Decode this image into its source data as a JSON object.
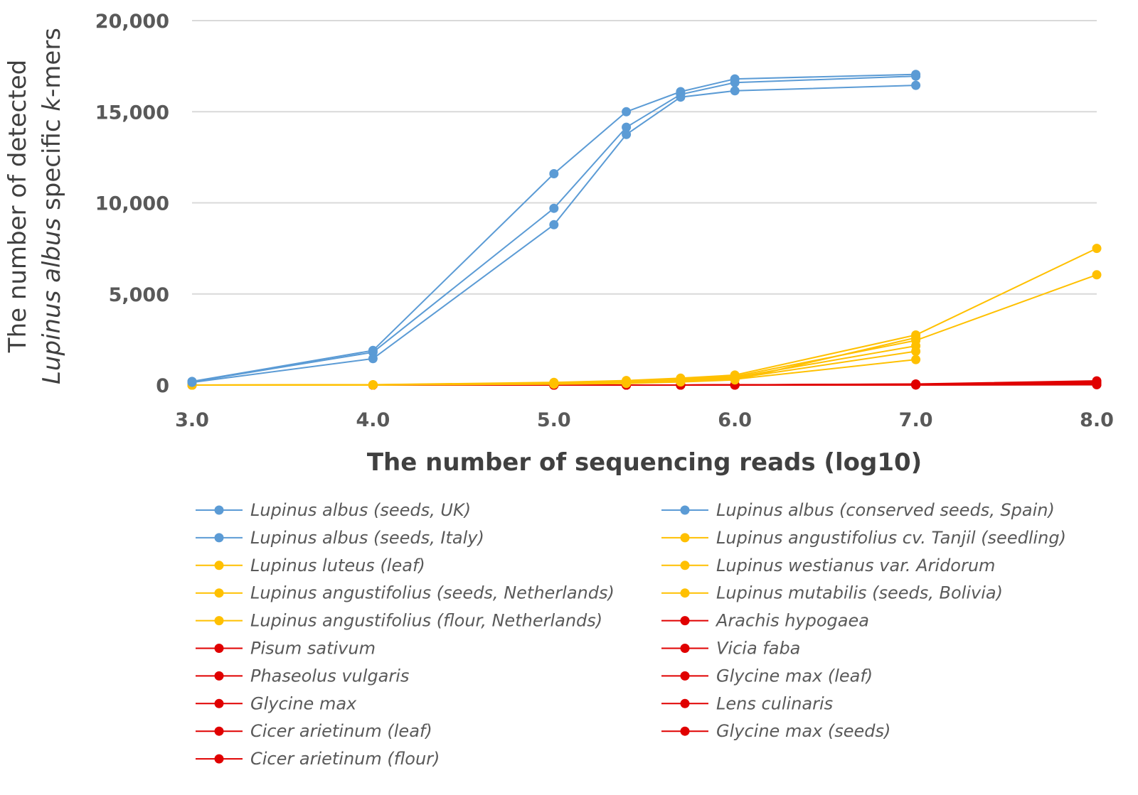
{
  "chart_data": {
    "type": "line",
    "xlabel": "The number of sequencing reads (log10)",
    "ylabel_parts": [
      {
        "text": "Lupinus albus",
        "italic": true
      },
      {
        "text": " specific ",
        "italic": false
      },
      {
        "text": "k",
        "italic": true
      },
      {
        "text": "-mers",
        "italic": false
      }
    ],
    "ylabel_line1": "The number of detected",
    "xlim": [
      3.0,
      8.0
    ],
    "ylim": [
      0,
      20000
    ],
    "x_ticks": [
      3.0,
      4.0,
      5.0,
      6.0,
      7.0,
      8.0
    ],
    "x_tick_labels": [
      "3.0",
      "4.0",
      "5.0",
      "6.0",
      "7.0",
      "8.0"
    ],
    "y_ticks": [
      0,
      5000,
      10000,
      15000,
      20000
    ],
    "y_tick_labels": [
      "0",
      "5,000",
      "10,000",
      "15,000",
      "20,000"
    ],
    "grid": true,
    "legend_position": "bottom",
    "series": [
      {
        "name": "Lupinus albus (seeds, UK)",
        "color": "#5b9bd5",
        "x": [
          3.0,
          4.0,
          5.0,
          5.4,
          5.7,
          6.0,
          7.0
        ],
        "y": [
          200,
          1900,
          11600,
          15000,
          16100,
          16800,
          17050
        ]
      },
      {
        "name": "Lupinus albus (conserved seeds, Spain)",
        "color": "#5b9bd5",
        "x": [
          3.0,
          4.0,
          5.0,
          5.4,
          5.7,
          6.0,
          7.0
        ],
        "y": [
          180,
          1800,
          9700,
          14150,
          15950,
          16600,
          16950
        ]
      },
      {
        "name": "Lupinus albus (seeds, Italy)",
        "color": "#5b9bd5",
        "x": [
          3.0,
          4.0,
          5.0,
          5.4,
          5.7,
          6.0,
          7.0
        ],
        "y": [
          150,
          1450,
          8800,
          13750,
          15800,
          16150,
          16450
        ]
      },
      {
        "name": "Lupinus angustifolius cv. Tanjil (seedling)",
        "color": "#ffc000",
        "x": [
          3.0,
          4.0,
          5.0,
          5.4,
          5.7,
          6.0,
          7.0,
          8.0
        ],
        "y": [
          0,
          20,
          150,
          250,
          380,
          550,
          2750,
          7500
        ]
      },
      {
        "name": "Lupinus luteus (leaf)",
        "color": "#ffc000",
        "x": [
          3.0,
          4.0,
          5.0,
          5.4,
          5.7,
          6.0,
          7.0,
          8.0
        ],
        "y": [
          0,
          15,
          120,
          200,
          320,
          480,
          2450,
          6050
        ]
      },
      {
        "name": "Lupinus westianus var. Aridorum",
        "color": "#ffc000",
        "x": [
          3.0,
          4.0,
          5.0,
          5.4,
          5.7,
          6.0,
          7.0
        ],
        "y": [
          0,
          10,
          100,
          170,
          280,
          420,
          2150
        ]
      },
      {
        "name": "Lupinus angustifolius (seeds, Netherlands)",
        "color": "#ffc000",
        "x": [
          3.0,
          4.0,
          5.0,
          5.4,
          5.7,
          6.0,
          7.0
        ],
        "y": [
          0,
          8,
          80,
          140,
          240,
          370,
          1850
        ]
      },
      {
        "name": "Lupinus mutabilis (seeds, Bolivia)",
        "color": "#ffc000",
        "x": [
          3.0,
          4.0,
          5.0,
          5.4,
          5.7,
          6.0,
          7.0
        ],
        "y": [
          0,
          5,
          60,
          110,
          200,
          320,
          1400
        ]
      },
      {
        "name": "Lupinus angustifolius (flour, Netherlands)",
        "color": "#ffc000",
        "x": [
          3.0,
          4.0,
          5.0,
          5.4,
          5.7,
          6.0,
          7.0
        ],
        "y": [
          0,
          5,
          50,
          90,
          170,
          280,
          2600
        ]
      },
      {
        "name": "Arachis hypogaea",
        "color": "#e00000",
        "x": [
          3.0,
          4.0,
          5.0,
          5.4,
          5.7,
          6.0,
          7.0,
          8.0
        ],
        "y": [
          0,
          0,
          0,
          0,
          0,
          10,
          60,
          230
        ]
      },
      {
        "name": "Pisum sativum",
        "color": "#e00000",
        "x": [
          3.0,
          4.0,
          5.0,
          5.4,
          5.7,
          6.0,
          7.0,
          8.0
        ],
        "y": [
          0,
          0,
          0,
          0,
          0,
          10,
          50,
          180
        ]
      },
      {
        "name": "Vicia faba",
        "color": "#e00000",
        "x": [
          3.0,
          4.0,
          5.0,
          5.4,
          5.7,
          6.0,
          7.0,
          8.0
        ],
        "y": [
          0,
          0,
          0,
          0,
          0,
          5,
          40,
          150
        ]
      },
      {
        "name": "Phaseolus vulgaris",
        "color": "#e00000",
        "x": [
          3.0,
          4.0,
          5.0,
          5.4,
          5.7,
          6.0,
          7.0,
          8.0
        ],
        "y": [
          0,
          0,
          0,
          0,
          0,
          5,
          30,
          110
        ]
      },
      {
        "name": "Glycine max (leaf)",
        "color": "#e00000",
        "x": [
          3.0,
          4.0,
          5.0,
          5.4,
          5.7,
          6.0,
          7.0,
          8.0
        ],
        "y": [
          0,
          0,
          0,
          0,
          0,
          5,
          25,
          90
        ]
      },
      {
        "name": "Glycine max",
        "color": "#e00000",
        "x": [
          3.0,
          4.0,
          5.0,
          5.4,
          5.7,
          6.0,
          7.0,
          8.0
        ],
        "y": [
          0,
          0,
          0,
          0,
          0,
          3,
          20,
          70
        ]
      },
      {
        "name": "Lens culinaris",
        "color": "#e00000",
        "x": [
          3.0,
          4.0,
          5.0,
          5.4,
          5.7,
          6.0,
          7.0,
          8.0
        ],
        "y": [
          0,
          0,
          0,
          0,
          0,
          3,
          15,
          50
        ]
      },
      {
        "name": "Cicer arietinum (leaf)",
        "color": "#e00000",
        "x": [
          3.0,
          4.0,
          5.0,
          5.4,
          5.7,
          6.0,
          7.0,
          8.0
        ],
        "y": [
          0,
          0,
          0,
          0,
          0,
          2,
          10,
          40
        ]
      },
      {
        "name": "Glycine max (seeds)",
        "color": "#e00000",
        "x": [
          3.0,
          4.0,
          5.0,
          5.4,
          5.7,
          6.0,
          7.0,
          8.0
        ],
        "y": [
          0,
          0,
          0,
          0,
          0,
          2,
          8,
          30
        ]
      },
      {
        "name": "Cicer arietinum (flour)",
        "color": "#e00000",
        "x": [
          3.0,
          4.0,
          5.0,
          5.4,
          5.7,
          6.0,
          7.0,
          8.0
        ],
        "y": [
          0,
          0,
          0,
          0,
          0,
          1,
          5,
          20
        ]
      }
    ],
    "legend_order": [
      0,
      1,
      2,
      3,
      4,
      5,
      6,
      7,
      8,
      9,
      10,
      11,
      12,
      13,
      14,
      15,
      16,
      17,
      18
    ]
  }
}
